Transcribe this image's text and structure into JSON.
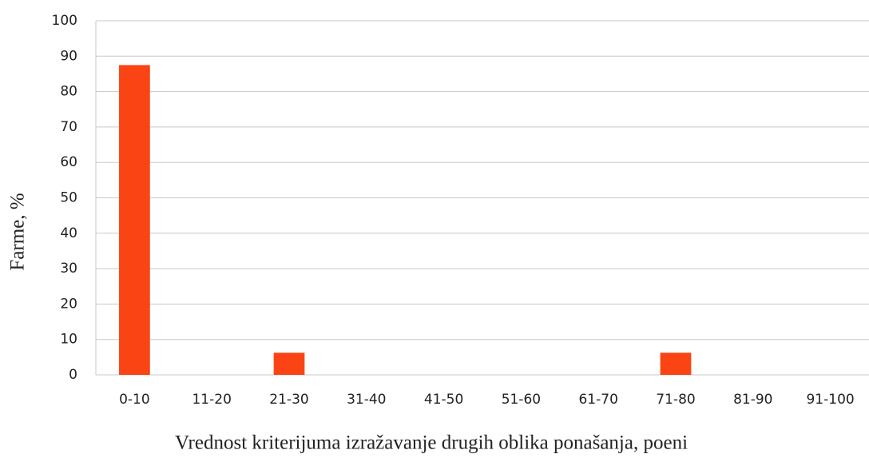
{
  "chart_data": {
    "type": "bar",
    "x_label": "Vrednost kriterijuma izražavanje drugih oblika ponašanja, poeni",
    "y_label": "Farme, %",
    "categories": [
      "0-10",
      "11-20",
      "21-30",
      "31-40",
      "41-50",
      "51-60",
      "61-70",
      "71-80",
      "81-90",
      "91-100"
    ],
    "values": [
      87.5,
      0,
      6.25,
      0,
      0,
      0,
      0,
      6.25,
      0,
      0
    ],
    "color": "#fa4414",
    "ylim": [
      0,
      100
    ],
    "yticks": [
      0,
      10,
      20,
      30,
      40,
      50,
      60,
      70,
      80,
      90,
      100
    ],
    "grid": true
  }
}
